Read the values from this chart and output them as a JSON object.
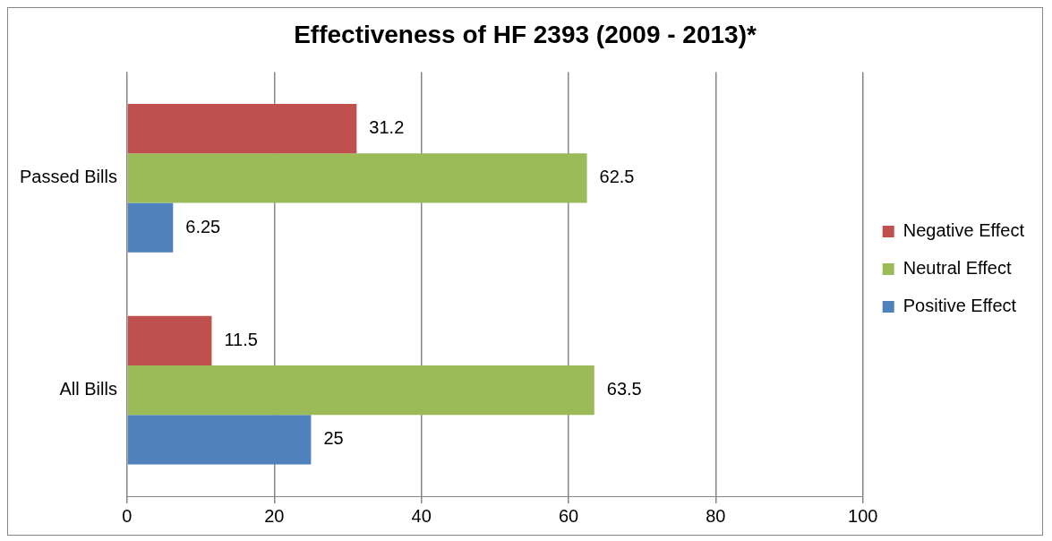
{
  "chart_data": {
    "type": "bar",
    "orientation": "horizontal",
    "title": "Effectiveness of HF 2393 (2009 - 2013)*",
    "categories": [
      "Passed Bills",
      "All Bills"
    ],
    "series": [
      {
        "name": "Negative Effect",
        "color": "#c0504d",
        "values": [
          31.2,
          11.5
        ]
      },
      {
        "name": "Neutral Effect",
        "color": "#9bbb59",
        "values": [
          62.5,
          63.5
        ]
      },
      {
        "name": "Positive Effect",
        "color": "#4f81bd",
        "values": [
          6.25,
          25
        ]
      }
    ],
    "xlim": [
      0,
      100
    ],
    "xticks": [
      0,
      20,
      40,
      60,
      80,
      100
    ],
    "grid": "x",
    "legend": "right",
    "data_labels": true
  }
}
